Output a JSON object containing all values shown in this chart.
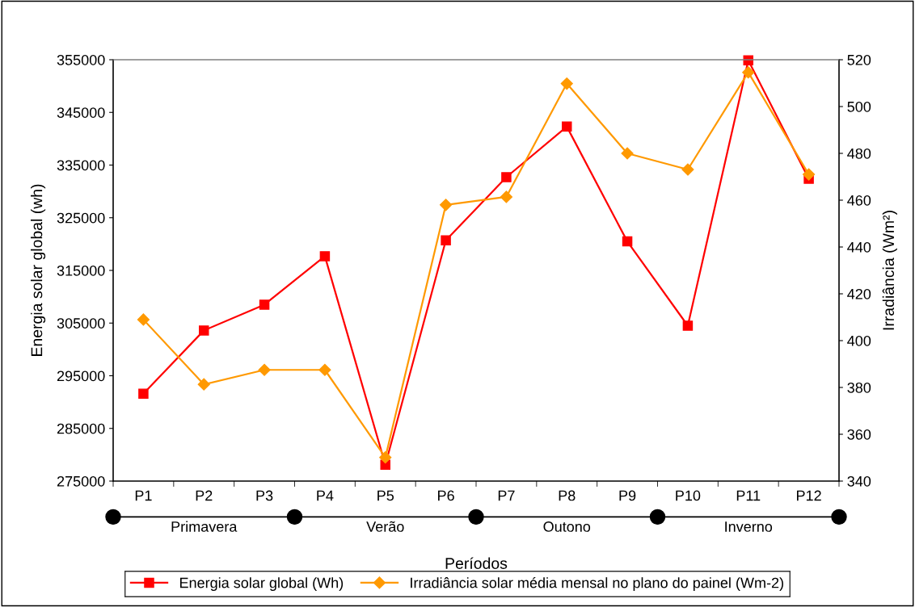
{
  "chart_data": {
    "type": "line",
    "xlabel": "Períodos",
    "ylabel": "Energia solar global (wh)",
    "y2label": "Irradiância (Wm²)",
    "categories": [
      "P1",
      "P2",
      "P3",
      "P4",
      "P5",
      "P6",
      "P7",
      "P8",
      "P9",
      "P10",
      "P11",
      "P12"
    ],
    "series": [
      {
        "name": "Energia solar global (Wh)",
        "color": "#ff0000",
        "marker": "square",
        "values": [
          291600,
          303600,
          308500,
          317700,
          278100,
          320700,
          332700,
          342300,
          320500,
          304500,
          354900,
          332400
        ]
      },
      {
        "name": "Irradiância solar média mensal no plano do painel (Wm-2)",
        "color": "#ff9900",
        "marker": "diamond",
        "axis": "y2",
        "values": [
          409,
          381.3,
          387.5,
          387.5,
          350.1,
          458,
          461.4,
          509.8,
          480,
          473.1,
          514.6,
          471
        ]
      }
    ],
    "ylim": [
      275000,
      355000
    ],
    "yticks": [
      275000,
      285000,
      295000,
      305000,
      315000,
      325000,
      335000,
      345000,
      355000
    ],
    "y2lim": [
      340,
      520
    ],
    "y2ticks": [
      340,
      360,
      380,
      400,
      420,
      440,
      460,
      480,
      500,
      520
    ],
    "annotations": [
      "Primavera",
      "Verão",
      "Outono",
      "Inverno"
    ],
    "grid": false,
    "legend": "bottom",
    "line_style": "solid"
  }
}
